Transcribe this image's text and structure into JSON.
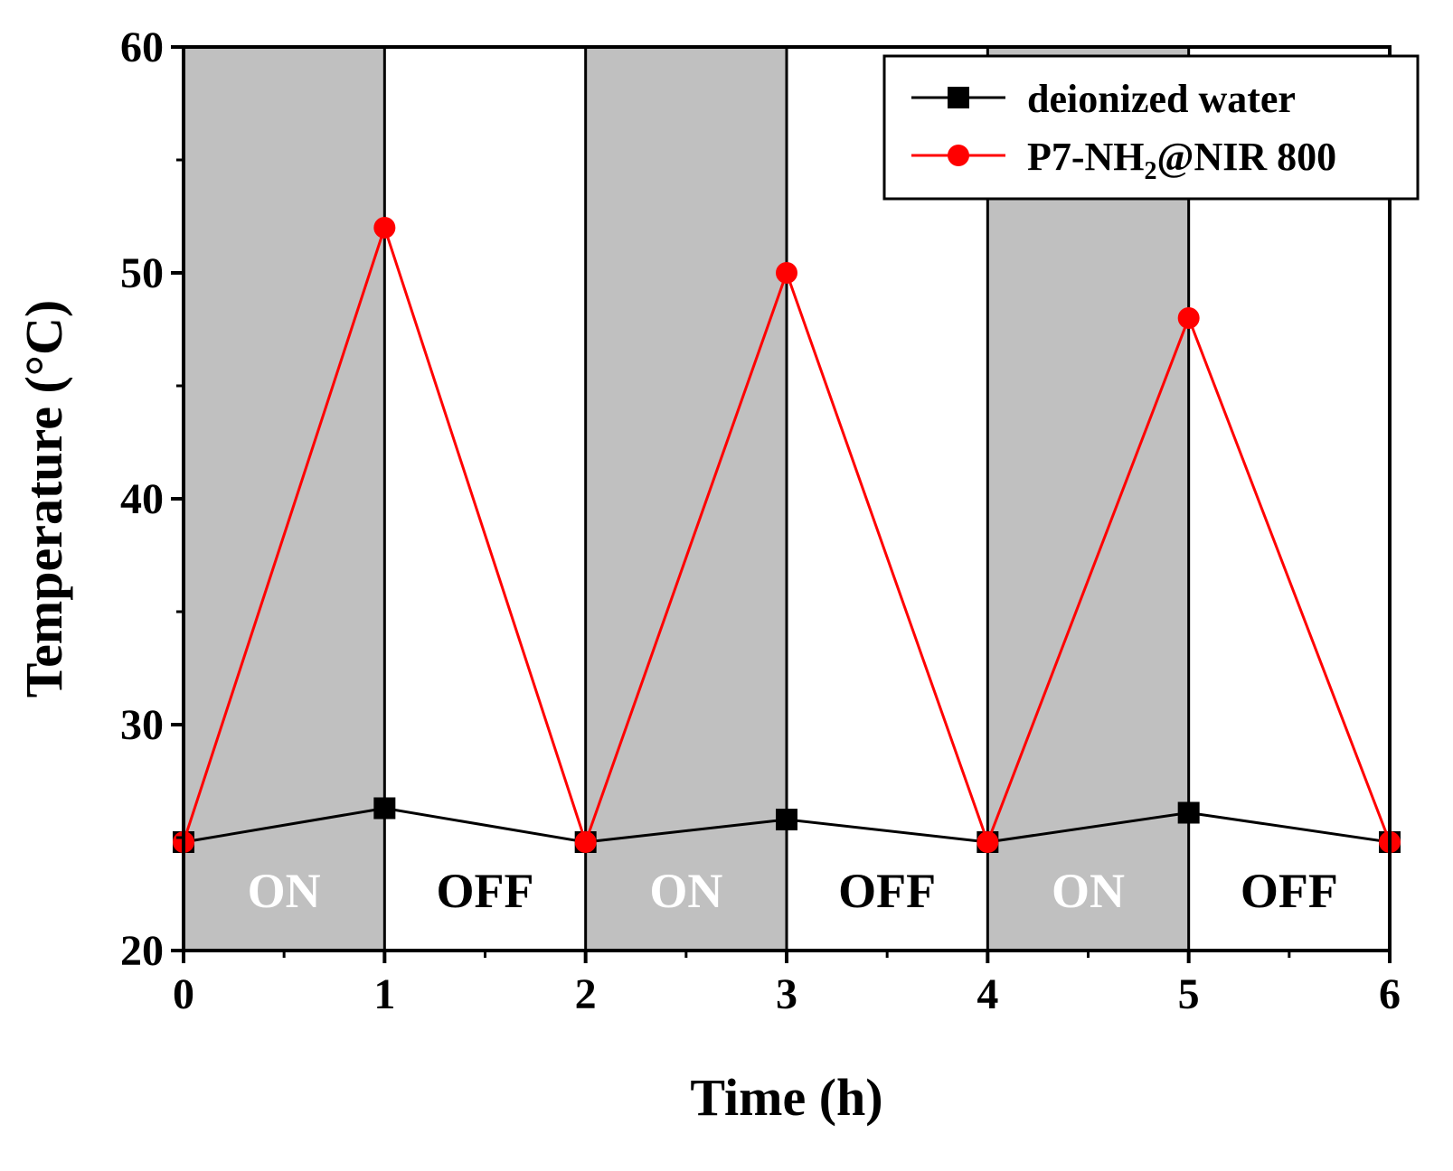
{
  "chart_data": {
    "type": "line",
    "title": "",
    "xlabel": "Time (h)",
    "ylabel": "Temperature (°C)",
    "xlim": [
      0,
      6
    ],
    "ylim": [
      20,
      60
    ],
    "xticks": [
      0,
      1,
      2,
      3,
      4,
      5,
      6
    ],
    "yticks": [
      20,
      30,
      40,
      50,
      60
    ],
    "x": [
      0,
      1,
      2,
      3,
      4,
      5,
      6
    ],
    "series": [
      {
        "name": "deionized water",
        "color": "#000000",
        "marker": "square",
        "values": [
          24.8,
          26.3,
          24.8,
          25.8,
          24.8,
          26.1,
          24.8
        ]
      },
      {
        "name": "P7-NH2@NIR 800",
        "name_main": "P7-NH",
        "name_sub": "2",
        "name_tail": "@NIR 800",
        "color": "#ff0000",
        "marker": "circle",
        "values": [
          24.8,
          52.0,
          24.8,
          50.0,
          24.8,
          48.0,
          24.8
        ]
      }
    ],
    "regions": [
      {
        "from": 0,
        "to": 1,
        "label": "ON",
        "state": "on"
      },
      {
        "from": 1,
        "to": 2,
        "label": "OFF",
        "state": "off"
      },
      {
        "from": 2,
        "to": 3,
        "label": "ON",
        "state": "on"
      },
      {
        "from": 3,
        "to": 4,
        "label": "OFF",
        "state": "off"
      },
      {
        "from": 4,
        "to": 5,
        "label": "ON",
        "state": "on"
      },
      {
        "from": 5,
        "to": 6,
        "label": "OFF",
        "state": "off"
      }
    ],
    "region_fill": "#c0c0c0",
    "legend_position": "top-right",
    "grid": false
  }
}
